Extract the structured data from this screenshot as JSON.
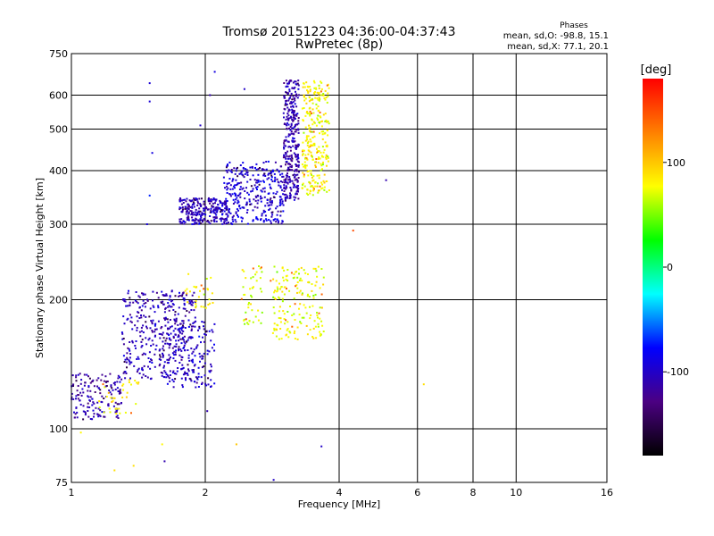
{
  "chart_data": {
    "type": "scatter",
    "title": "Tromsø 20151223 04:36:00-04:37:43",
    "subtitle": "RwPretec (8p)",
    "xlabel": "Frequency [MHz]",
    "ylabel": "Stationary phase Virtual Height [km]",
    "xscale": "log",
    "yscale": "log",
    "xlim": [
      1,
      16
    ],
    "ylim": [
      75,
      750
    ],
    "xticks": [
      1,
      2,
      4,
      6,
      8,
      10,
      16
    ],
    "yticks": [
      75,
      100,
      200,
      300,
      400,
      500,
      600,
      750
    ],
    "grid": true,
    "phases": {
      "heading": "Phases",
      "o_stats": "mean, sd,O: -98.8, 15.1",
      "x_stats": "mean, sd,X:  77.1, 20.1"
    },
    "colorbar": {
      "label": "[deg]",
      "range": [
        -180,
        180
      ],
      "ticks": [
        -100,
        0,
        100
      ],
      "colors": [
        "#000000",
        "#4b0082",
        "#0000ff",
        "#00ffff",
        "#00ff00",
        "#ffff00",
        "#ff8000",
        "#ff0000"
      ]
    },
    "clusters": [
      {
        "f": [
          1.0,
          1.3
        ],
        "h": [
          105,
          135
        ],
        "phase": -110,
        "n": 160
      },
      {
        "f": [
          1.15,
          1.45
        ],
        "h": [
          108,
          130
        ],
        "phase": 80,
        "n": 35
      },
      {
        "f": [
          1.3,
          1.9
        ],
        "h": [
          130,
          210
        ],
        "phase": -105,
        "n": 380
      },
      {
        "f": [
          1.6,
          2.1
        ],
        "h": [
          125,
          180
        ],
        "phase": -100,
        "n": 160
      },
      {
        "f": [
          1.8,
          2.1
        ],
        "h": [
          190,
          230
        ],
        "phase": 80,
        "n": 30
      },
      {
        "f": [
          1.75,
          2.25
        ],
        "h": [
          300,
          345
        ],
        "phase": -105,
        "n": 260
      },
      {
        "f": [
          2.2,
          3.0
        ],
        "h": [
          300,
          420
        ],
        "phase": -95,
        "n": 320
      },
      {
        "f": [
          3.0,
          3.25
        ],
        "h": [
          340,
          650
        ],
        "phase": -110,
        "n": 330
      },
      {
        "f": [
          3.3,
          3.8
        ],
        "h": [
          350,
          650
        ],
        "phase": 80,
        "n": 280
      },
      {
        "f": [
          2.4,
          2.7
        ],
        "h": [
          175,
          240
        ],
        "phase": 70,
        "n": 45
      },
      {
        "f": [
          2.8,
          3.7
        ],
        "h": [
          160,
          240
        ],
        "phase": 75,
        "n": 170
      }
    ],
    "sparse": [
      {
        "f": 1.5,
        "h": 640,
        "phase": -95
      },
      {
        "f": 1.5,
        "h": 580,
        "phase": -95
      },
      {
        "f": 1.52,
        "h": 440,
        "phase": -90
      },
      {
        "f": 1.5,
        "h": 350,
        "phase": -70
      },
      {
        "f": 1.48,
        "h": 300,
        "phase": -90
      },
      {
        "f": 1.95,
        "h": 510,
        "phase": -100
      },
      {
        "f": 2.05,
        "h": 600,
        "phase": -110
      },
      {
        "f": 2.1,
        "h": 680,
        "phase": -90
      },
      {
        "f": 2.45,
        "h": 620,
        "phase": -100
      },
      {
        "f": 4.3,
        "h": 290,
        "phase": 150
      },
      {
        "f": 5.1,
        "h": 380,
        "phase": -110
      },
      {
        "f": 6.2,
        "h": 127,
        "phase": 90
      },
      {
        "f": 2.35,
        "h": 92,
        "phase": 100
      },
      {
        "f": 3.65,
        "h": 91,
        "phase": -100
      },
      {
        "f": 1.38,
        "h": 82,
        "phase": 90
      },
      {
        "f": 1.62,
        "h": 84,
        "phase": -110
      },
      {
        "f": 1.25,
        "h": 80,
        "phase": 90
      },
      {
        "f": 2.85,
        "h": 76,
        "phase": -100
      },
      {
        "f": 1.05,
        "h": 98,
        "phase": 80
      },
      {
        "f": 2.02,
        "h": 110,
        "phase": -110
      },
      {
        "f": 1.6,
        "h": 92,
        "phase": 80
      }
    ]
  }
}
